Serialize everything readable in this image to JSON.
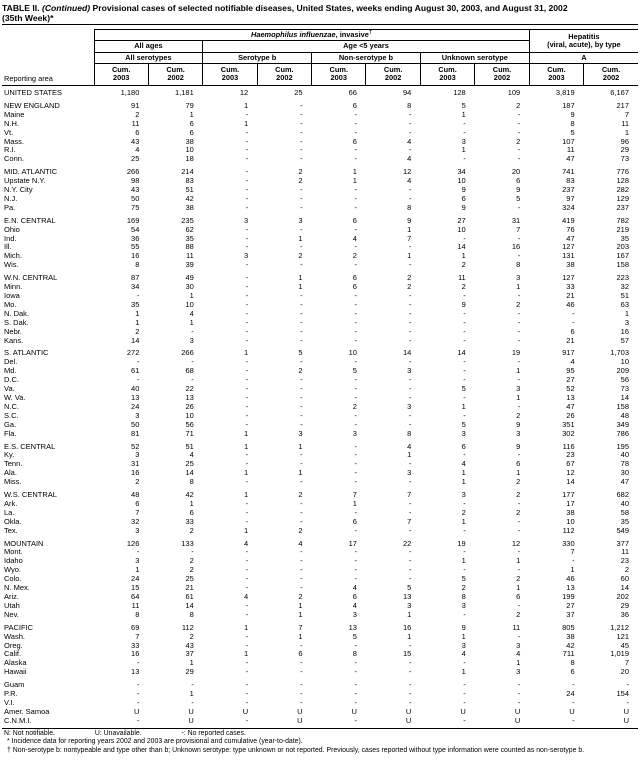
{
  "title": {
    "label": "TABLE II.",
    "continued": "(Continued)",
    "text": " Provisional cases of selected notifiable diseases, United States, weeks ending August 30, 2003, and August 31, 2002",
    "line2": "(35th Week)*"
  },
  "header": {
    "reporting_area": "Reporting area",
    "group_hi_italic": "Haemophilus influenzae",
    "group_hi_rest": ", invasive",
    "group_hi_dagger": "†",
    "group_hep_line1": "Hepatitis",
    "group_hep_line2": "(viral, acute), by type",
    "sub_all_ages": "All ages",
    "sub_age5": "Age <5 years",
    "col_all_serotypes": "All serotypes",
    "col_serotype_b": "Serotype b",
    "col_non_serotype_b": "Non-serotype b",
    "col_unknown_serotype": "Unknown serotype",
    "col_a": "A",
    "cum": "Cum.",
    "y2003": "2003",
    "y2002": "2002"
  },
  "rows": [
    {
      "area": "UNITED STATES",
      "level": "national",
      "gap": false,
      "values": [
        "1,180",
        "1,181",
        "12",
        "25",
        "66",
        "94",
        "128",
        "109",
        "3,819",
        "6,167"
      ]
    },
    {
      "area": "NEW ENGLAND",
      "level": "region",
      "gap": true,
      "values": [
        "91",
        "79",
        "1",
        "-",
        "6",
        "8",
        "5",
        "2",
        "187",
        "217"
      ]
    },
    {
      "area": "Maine",
      "level": "state",
      "gap": false,
      "values": [
        "2",
        "1",
        "-",
        "-",
        "-",
        "-",
        "1",
        "-",
        "9",
        "7"
      ]
    },
    {
      "area": "N.H.",
      "level": "state",
      "gap": false,
      "values": [
        "11",
        "6",
        "1",
        "-",
        "-",
        "-",
        "-",
        "-",
        "8",
        "11"
      ]
    },
    {
      "area": "Vt.",
      "level": "state",
      "gap": false,
      "values": [
        "6",
        "6",
        "-",
        "-",
        "-",
        "-",
        "-",
        "-",
        "5",
        "1"
      ]
    },
    {
      "area": "Mass.",
      "level": "state",
      "gap": false,
      "values": [
        "43",
        "38",
        "-",
        "-",
        "6",
        "4",
        "3",
        "2",
        "107",
        "96"
      ]
    },
    {
      "area": "R.I.",
      "level": "state",
      "gap": false,
      "values": [
        "4",
        "10",
        "-",
        "-",
        "-",
        "-",
        "1",
        "-",
        "11",
        "29"
      ]
    },
    {
      "area": "Conn.",
      "level": "state",
      "gap": false,
      "values": [
        "25",
        "18",
        "-",
        "-",
        "-",
        "4",
        "-",
        "-",
        "47",
        "73"
      ]
    },
    {
      "area": "MID. ATLANTIC",
      "level": "region",
      "gap": true,
      "values": [
        "266",
        "214",
        "-",
        "2",
        "1",
        "12",
        "34",
        "20",
        "741",
        "776"
      ]
    },
    {
      "area": "Upstate N.Y.",
      "level": "state",
      "gap": false,
      "values": [
        "98",
        "83",
        "-",
        "2",
        "1",
        "4",
        "10",
        "6",
        "83",
        "128"
      ]
    },
    {
      "area": "N.Y. City",
      "level": "state",
      "gap": false,
      "values": [
        "43",
        "51",
        "-",
        "-",
        "-",
        "-",
        "9",
        "9",
        "237",
        "282"
      ]
    },
    {
      "area": "N.J.",
      "level": "state",
      "gap": false,
      "values": [
        "50",
        "42",
        "-",
        "-",
        "-",
        "-",
        "6",
        "5",
        "97",
        "129"
      ]
    },
    {
      "area": "Pa.",
      "level": "state",
      "gap": false,
      "values": [
        "75",
        "38",
        "-",
        "-",
        "-",
        "8",
        "9",
        "-",
        "324",
        "237"
      ]
    },
    {
      "area": "E.N. CENTRAL",
      "level": "region",
      "gap": true,
      "values": [
        "169",
        "235",
        "3",
        "3",
        "6",
        "9",
        "27",
        "31",
        "419",
        "782"
      ]
    },
    {
      "area": "Ohio",
      "level": "state",
      "gap": false,
      "values": [
        "54",
        "62",
        "-",
        "-",
        "-",
        "1",
        "10",
        "7",
        "76",
        "219"
      ]
    },
    {
      "area": "Ind.",
      "level": "state",
      "gap": false,
      "values": [
        "36",
        "35",
        "-",
        "1",
        "4",
        "7",
        "-",
        "-",
        "47",
        "35"
      ]
    },
    {
      "area": "Ill.",
      "level": "state",
      "gap": false,
      "values": [
        "55",
        "88",
        "-",
        "-",
        "-",
        "-",
        "14",
        "16",
        "127",
        "203"
      ]
    },
    {
      "area": "Mich.",
      "level": "state",
      "gap": false,
      "values": [
        "16",
        "11",
        "3",
        "2",
        "2",
        "1",
        "1",
        "-",
        "131",
        "167"
      ]
    },
    {
      "area": "Wis.",
      "level": "state",
      "gap": false,
      "values": [
        "8",
        "39",
        "-",
        "-",
        "-",
        "-",
        "2",
        "8",
        "38",
        "158"
      ]
    },
    {
      "area": "W.N. CENTRAL",
      "level": "region",
      "gap": true,
      "values": [
        "87",
        "49",
        "-",
        "1",
        "6",
        "2",
        "11",
        "3",
        "127",
        "223"
      ]
    },
    {
      "area": "Minn.",
      "level": "state",
      "gap": false,
      "values": [
        "34",
        "30",
        "-",
        "1",
        "6",
        "2",
        "2",
        "1",
        "33",
        "32"
      ]
    },
    {
      "area": "Iowa",
      "level": "state",
      "gap": false,
      "values": [
        "-",
        "1",
        "-",
        "-",
        "-",
        "-",
        "-",
        "-",
        "21",
        "51"
      ]
    },
    {
      "area": "Mo.",
      "level": "state",
      "gap": false,
      "values": [
        "35",
        "10",
        "-",
        "-",
        "-",
        "-",
        "9",
        "2",
        "46",
        "63"
      ]
    },
    {
      "area": "N. Dak.",
      "level": "state",
      "gap": false,
      "values": [
        "1",
        "4",
        "-",
        "-",
        "-",
        "-",
        "-",
        "-",
        "-",
        "1"
      ]
    },
    {
      "area": "S. Dak.",
      "level": "state",
      "gap": false,
      "values": [
        "1",
        "1",
        "-",
        "-",
        "-",
        "-",
        "-",
        "-",
        "-",
        "3"
      ]
    },
    {
      "area": "Nebr.",
      "level": "state",
      "gap": false,
      "values": [
        "2",
        "-",
        "-",
        "-",
        "-",
        "-",
        "-",
        "-",
        "6",
        "16"
      ]
    },
    {
      "area": "Kans.",
      "level": "state",
      "gap": false,
      "values": [
        "14",
        "3",
        "-",
        "-",
        "-",
        "-",
        "-",
        "-",
        "21",
        "57"
      ]
    },
    {
      "area": "S. ATLANTIC",
      "level": "region",
      "gap": true,
      "values": [
        "272",
        "266",
        "1",
        "5",
        "10",
        "14",
        "14",
        "19",
        "917",
        "1,703"
      ]
    },
    {
      "area": "Del.",
      "level": "state",
      "gap": false,
      "values": [
        "-",
        "-",
        "-",
        "-",
        "-",
        "-",
        "-",
        "-",
        "4",
        "10"
      ]
    },
    {
      "area": "Md.",
      "level": "state",
      "gap": false,
      "values": [
        "61",
        "68",
        "-",
        "2",
        "5",
        "3",
        "-",
        "1",
        "95",
        "209"
      ]
    },
    {
      "area": "D.C.",
      "level": "state",
      "gap": false,
      "values": [
        "-",
        "-",
        "-",
        "-",
        "-",
        "-",
        "-",
        "-",
        "27",
        "56"
      ]
    },
    {
      "area": "Va.",
      "level": "state",
      "gap": false,
      "values": [
        "40",
        "22",
        "-",
        "-",
        "-",
        "-",
        "5",
        "3",
        "52",
        "73"
      ]
    },
    {
      "area": "W. Va.",
      "level": "state",
      "gap": false,
      "values": [
        "13",
        "13",
        "-",
        "-",
        "-",
        "-",
        "-",
        "1",
        "13",
        "14"
      ]
    },
    {
      "area": "N.C.",
      "level": "state",
      "gap": false,
      "values": [
        "24",
        "26",
        "-",
        "-",
        "2",
        "3",
        "1",
        "-",
        "47",
        "158"
      ]
    },
    {
      "area": "S.C.",
      "level": "state",
      "gap": false,
      "values": [
        "3",
        "10",
        "-",
        "-",
        "-",
        "-",
        "-",
        "2",
        "26",
        "48"
      ]
    },
    {
      "area": "Ga.",
      "level": "state",
      "gap": false,
      "values": [
        "50",
        "56",
        "-",
        "-",
        "-",
        "-",
        "5",
        "9",
        "351",
        "349"
      ]
    },
    {
      "area": "Fla.",
      "level": "state",
      "gap": false,
      "values": [
        "81",
        "71",
        "1",
        "3",
        "3",
        "8",
        "3",
        "3",
        "302",
        "786"
      ]
    },
    {
      "area": "E.S. CENTRAL",
      "level": "region",
      "gap": true,
      "values": [
        "52",
        "51",
        "1",
        "1",
        "-",
        "4",
        "6",
        "9",
        "116",
        "195"
      ]
    },
    {
      "area": "Ky.",
      "level": "state",
      "gap": false,
      "values": [
        "3",
        "4",
        "-",
        "-",
        "-",
        "1",
        "-",
        "-",
        "23",
        "40"
      ]
    },
    {
      "area": "Tenn.",
      "level": "state",
      "gap": false,
      "values": [
        "31",
        "25",
        "-",
        "-",
        "-",
        "-",
        "4",
        "6",
        "67",
        "78"
      ]
    },
    {
      "area": "Ala.",
      "level": "state",
      "gap": false,
      "values": [
        "16",
        "14",
        "1",
        "1",
        "-",
        "3",
        "1",
        "1",
        "12",
        "30"
      ]
    },
    {
      "area": "Miss.",
      "level": "state",
      "gap": false,
      "values": [
        "2",
        "8",
        "-",
        "-",
        "-",
        "-",
        "1",
        "2",
        "14",
        "47"
      ]
    },
    {
      "area": "W.S. CENTRAL",
      "level": "region",
      "gap": true,
      "values": [
        "48",
        "42",
        "1",
        "2",
        "7",
        "7",
        "3",
        "2",
        "177",
        "682"
      ]
    },
    {
      "area": "Ark.",
      "level": "state",
      "gap": false,
      "values": [
        "6",
        "1",
        "-",
        "-",
        "1",
        "-",
        "-",
        "-",
        "17",
        "40"
      ]
    },
    {
      "area": "La.",
      "level": "state",
      "gap": false,
      "values": [
        "7",
        "6",
        "-",
        "-",
        "-",
        "-",
        "2",
        "2",
        "38",
        "58"
      ]
    },
    {
      "area": "Okla.",
      "level": "state",
      "gap": false,
      "values": [
        "32",
        "33",
        "-",
        "-",
        "6",
        "7",
        "1",
        "-",
        "10",
        "35"
      ]
    },
    {
      "area": "Tex.",
      "level": "state",
      "gap": false,
      "values": [
        "3",
        "2",
        "1",
        "2",
        "-",
        "-",
        "-",
        "-",
        "112",
        "549"
      ]
    },
    {
      "area": "MOUNTAIN",
      "level": "region",
      "gap": true,
      "values": [
        "126",
        "133",
        "4",
        "4",
        "17",
        "22",
        "19",
        "12",
        "330",
        "377"
      ]
    },
    {
      "area": "Mont.",
      "level": "state",
      "gap": false,
      "values": [
        "-",
        "-",
        "-",
        "-",
        "-",
        "-",
        "-",
        "-",
        "7",
        "11"
      ]
    },
    {
      "area": "Idaho",
      "level": "state",
      "gap": false,
      "values": [
        "3",
        "2",
        "-",
        "-",
        "-",
        "-",
        "1",
        "1",
        "-",
        "23"
      ]
    },
    {
      "area": "Wyo.",
      "level": "state",
      "gap": false,
      "values": [
        "1",
        "2",
        "-",
        "-",
        "-",
        "-",
        "-",
        "-",
        "1",
        "2"
      ]
    },
    {
      "area": "Colo.",
      "level": "state",
      "gap": false,
      "values": [
        "24",
        "25",
        "-",
        "-",
        "-",
        "-",
        "5",
        "2",
        "46",
        "60"
      ]
    },
    {
      "area": "N. Mex.",
      "level": "state",
      "gap": false,
      "values": [
        "15",
        "21",
        "-",
        "-",
        "4",
        "5",
        "2",
        "1",
        "13",
        "14"
      ]
    },
    {
      "area": "Ariz.",
      "level": "state",
      "gap": false,
      "values": [
        "64",
        "61",
        "4",
        "2",
        "6",
        "13",
        "8",
        "6",
        "199",
        "202"
      ]
    },
    {
      "area": "Utah",
      "level": "state",
      "gap": false,
      "values": [
        "11",
        "14",
        "-",
        "1",
        "4",
        "3",
        "3",
        "-",
        "27",
        "29"
      ]
    },
    {
      "area": "Nev.",
      "level": "state",
      "gap": false,
      "values": [
        "8",
        "8",
        "-",
        "1",
        "3",
        "1",
        "-",
        "2",
        "37",
        "36"
      ]
    },
    {
      "area": "PACIFIC",
      "level": "region",
      "gap": true,
      "values": [
        "69",
        "112",
        "1",
        "7",
        "13",
        "16",
        "9",
        "11",
        "805",
        "1,212"
      ]
    },
    {
      "area": "Wash.",
      "level": "state",
      "gap": false,
      "values": [
        "7",
        "2",
        "-",
        "1",
        "5",
        "1",
        "1",
        "-",
        "38",
        "121"
      ]
    },
    {
      "area": "Oreg.",
      "level": "state",
      "gap": false,
      "values": [
        "33",
        "43",
        "-",
        "-",
        "-",
        "-",
        "3",
        "3",
        "42",
        "45"
      ]
    },
    {
      "area": "Calif.",
      "level": "state",
      "gap": false,
      "values": [
        "16",
        "37",
        "1",
        "6",
        "8",
        "15",
        "4",
        "4",
        "711",
        "1,019"
      ]
    },
    {
      "area": "Alaska",
      "level": "state",
      "gap": false,
      "values": [
        "-",
        "1",
        "-",
        "-",
        "-",
        "-",
        "-",
        "1",
        "8",
        "7"
      ]
    },
    {
      "area": "Hawaii",
      "level": "state",
      "gap": false,
      "values": [
        "13",
        "29",
        "-",
        "-",
        "-",
        "-",
        "1",
        "3",
        "6",
        "20"
      ]
    },
    {
      "area": "Guam",
      "level": "territory",
      "gap": true,
      "values": [
        "-",
        "-",
        "-",
        "-",
        "-",
        "-",
        "-",
        "-",
        "-",
        "-"
      ]
    },
    {
      "area": "P.R.",
      "level": "territory",
      "gap": false,
      "values": [
        "-",
        "1",
        "-",
        "-",
        "-",
        "-",
        "-",
        "-",
        "24",
        "154"
      ]
    },
    {
      "area": "V.I.",
      "level": "territory",
      "gap": false,
      "values": [
        "-",
        "-",
        "-",
        "-",
        "-",
        "-",
        "-",
        "-",
        "-",
        "-"
      ]
    },
    {
      "area": "Amer. Samoa",
      "level": "territory",
      "gap": false,
      "values": [
        "U",
        "U",
        "U",
        "U",
        "U",
        "U",
        "U",
        "U",
        "U",
        "U"
      ]
    },
    {
      "area": "C.N.M.I.",
      "level": "territory",
      "gap": false,
      "values": [
        "-",
        "U",
        "-",
        "U",
        "-",
        "U",
        "-",
        "U",
        "-",
        "U"
      ]
    }
  ],
  "footnotes": {
    "legend": [
      "N: Not notifiable.",
      "U: Unavailable.",
      "-: No reported cases."
    ],
    "asterisk": "* Incidence data for reporting years 2002 and 2003 are provisional and cumulative (year-to-date).",
    "dagger": "† Non-serotype b: nontypeable and type other than b; Unknown serotype: type unknown or not reported. Previously, cases reported without type information were counted as non-serotype b."
  }
}
